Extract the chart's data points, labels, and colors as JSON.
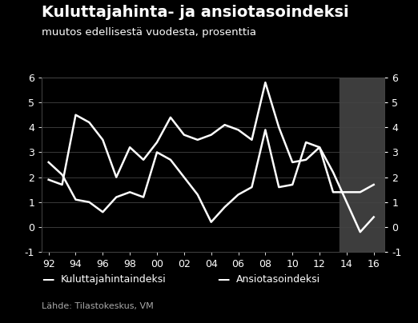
{
  "title": "Kuluttajahinta- ja ansiotasoindeksi",
  "subtitle": "muutos edellisestä vuodesta, prosenttia",
  "source": "Lähde: Tilastokeskus, VM",
  "background_color": "#000000",
  "plot_bg_color": "#000000",
  "forecast_bg_color": "#3d3d3d",
  "forecast_start": 2013.5,
  "xlim_left": 1991.5,
  "xlim_right": 2016.8,
  "ylim": [
    -1,
    6
  ],
  "yticks": [
    -1,
    0,
    1,
    2,
    3,
    4,
    5,
    6
  ],
  "legend1": "Kuluttajahintaindeksi",
  "legend2": "Ansiotasoindeksi",
  "line_color": "#ffffff",
  "grid_color": "#444444",
  "years_cpi": [
    1992,
    1993,
    1994,
    1995,
    1996,
    1997,
    1998,
    1999,
    2000,
    2001,
    2002,
    2003,
    2004,
    2005,
    2006,
    2007,
    2008,
    2009,
    2010,
    2011,
    2012,
    2013,
    2014,
    2015,
    2016
  ],
  "cpi": [
    2.6,
    2.1,
    1.1,
    1.0,
    0.6,
    1.2,
    1.4,
    1.2,
    3.0,
    2.7,
    2.0,
    1.3,
    0.2,
    0.8,
    1.3,
    1.6,
    3.9,
    1.6,
    1.7,
    3.4,
    3.2,
    2.2,
    1.0,
    -0.2,
    0.4
  ],
  "years_awi": [
    1992,
    1993,
    1994,
    1995,
    1996,
    1997,
    1998,
    1999,
    2000,
    2001,
    2002,
    2003,
    2004,
    2005,
    2006,
    2007,
    2008,
    2009,
    2010,
    2011,
    2012,
    2013,
    2014,
    2015,
    2016
  ],
  "awi": [
    1.9,
    1.7,
    4.5,
    4.2,
    3.5,
    2.0,
    3.2,
    2.7,
    3.4,
    4.4,
    3.7,
    3.5,
    3.7,
    4.1,
    3.9,
    3.5,
    5.8,
    4.0,
    2.6,
    2.7,
    3.2,
    1.4,
    1.4,
    1.4,
    1.7
  ],
  "title_fontsize": 14,
  "subtitle_fontsize": 9.5,
  "tick_fontsize": 9,
  "legend_fontsize": 9,
  "source_fontsize": 8
}
